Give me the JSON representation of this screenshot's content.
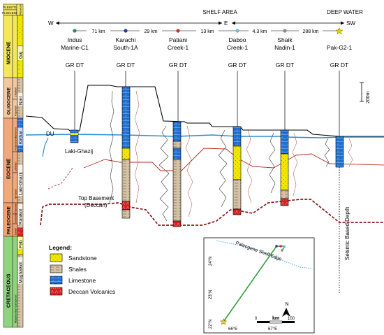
{
  "header": {
    "shelf_area": "SHELF AREA",
    "deep_water": "DEEP WATER",
    "compass": {
      "w": "W",
      "e": "E",
      "sw": "SW"
    }
  },
  "distances": [
    "71 km",
    "29 km",
    "13 km",
    "4.3 km",
    "288 km"
  ],
  "wells": [
    {
      "name_l1": "Indus",
      "name_l2": "Marine-C1",
      "marker_color": "#2e8b57",
      "logs": "GR  DT"
    },
    {
      "name_l1": "Karachi",
      "name_l2": "South-1A",
      "marker_color": "#2b3a8f",
      "logs": "GR  DT"
    },
    {
      "name_l1": "Patiani",
      "name_l2": "Creek-1",
      "marker_color": "#c0392b",
      "logs": "GR  DT"
    },
    {
      "name_l1": "Daboo",
      "name_l2": "Creek-1",
      "marker_color": "#6fb6e0",
      "logs": "GR  DT"
    },
    {
      "name_l1": "Shaik",
      "name_l2": "Nadin-1",
      "marker_color": "#8a8a8a",
      "logs": "GR  DT"
    },
    {
      "name_l1": "Pak-G2-1",
      "name_l2": "",
      "marker_color": "#e6c300",
      "logs": "GR  DT"
    }
  ],
  "scale_bar": "200m",
  "stratigraphy": {
    "top_1": "PLEISTO.",
    "top_2": "PLIOCENE",
    "alluvium": "Alluvium",
    "epochs": [
      "MIOCENE",
      "OLIGOCENE",
      "EOCENE",
      "PALEOCENE",
      "CRETACEOUS"
    ],
    "stages": [
      "Chattian",
      "Rupelian",
      "Priabonian/Bartonian",
      "Lutetian",
      "Ypresian",
      "Thanetian",
      "Selandian",
      "Danian",
      "Maastrichtian-Campanian"
    ],
    "formations": [
      "Gaj",
      "Nari",
      "Kirthar",
      "Laki-Ghazij",
      "Ranikot",
      "Pab",
      "Mughalkot"
    ]
  },
  "annotations": {
    "du": "DU",
    "laki_ghazij": "Laki-Ghazij",
    "top_basement_l1": "Top Basement",
    "top_basement_l2": "(Deccan)",
    "seismic_depth": "Seismic Based Depth"
  },
  "legend": {
    "title": "Legend:",
    "items": [
      {
        "label": "Sandstone",
        "color": "#f2e600"
      },
      {
        "label": "Shales",
        "color": "#d6c3a5"
      },
      {
        "label": "Limestone",
        "color": "#1f6fd0"
      },
      {
        "label": "Deccan Volcanics",
        "color": "#d42020"
      }
    ]
  },
  "inset_map": {
    "label_shelf_edge": "Paleogene Shelf Edge",
    "lat_labels": [
      "24°N",
      "23°N",
      "22°N"
    ],
    "lon_labels": [
      "66°E",
      "67°E"
    ],
    "scale_label": "km",
    "scale_ticks": [
      "0",
      "100"
    ],
    "north": "N"
  }
}
